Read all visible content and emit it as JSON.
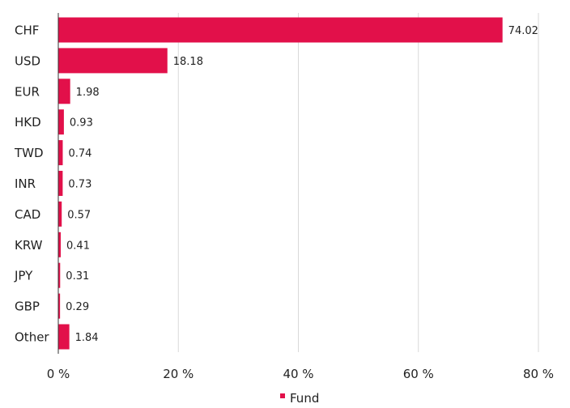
{
  "chart_data": {
    "type": "bar",
    "orientation": "horizontal",
    "categories": [
      "CHF",
      "USD",
      "EUR",
      "HKD",
      "TWD",
      "INR",
      "CAD",
      "KRW",
      "JPY",
      "GBP",
      "Other"
    ],
    "series": [
      {
        "name": "Fund",
        "color": "#e2104a",
        "values": [
          74.02,
          18.18,
          1.98,
          0.93,
          0.74,
          0.73,
          0.57,
          0.41,
          0.31,
          0.29,
          1.84
        ],
        "value_labels": [
          "74.02",
          "18.18",
          "1.98",
          "0.93",
          "0.74",
          "0.73",
          "0.57",
          "0.41",
          "0.31",
          "0.29",
          "1.84"
        ]
      }
    ],
    "xlim": [
      0,
      80
    ],
    "xticks": [
      0,
      20,
      40,
      60,
      80
    ],
    "xtick_labels": [
      "0 %",
      "20 %",
      "40 %",
      "60 %",
      "80 %"
    ],
    "grid": "vertical",
    "legend": {
      "position": "bottom-center",
      "entries": [
        "Fund"
      ]
    }
  }
}
